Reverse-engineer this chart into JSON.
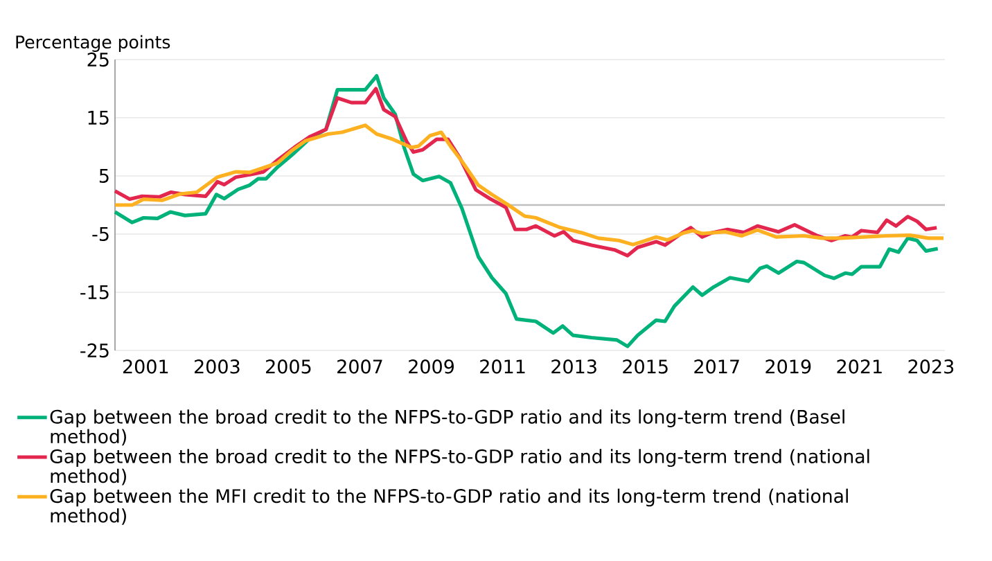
{
  "chart_data": {
    "type": "line",
    "ylabel": "Percentage points",
    "xlim": [
      2000.14,
      2023.39
    ],
    "xticks": [
      2001,
      2003,
      2005,
      2007,
      2009,
      2011,
      2013,
      2015,
      2017,
      2019,
      2021,
      2023
    ],
    "ylim": [
      -25,
      25
    ],
    "yticks": [
      25,
      15,
      5,
      -5,
      -15,
      -25
    ],
    "grid": "y",
    "legend": "bottom",
    "marker": "none",
    "line_style": "solid",
    "ref_lines": [
      {
        "axis": "y",
        "value": 0,
        "label": null,
        "color": "#bfbfbf"
      }
    ],
    "series": [
      {
        "name": "Gap between the broad credit to the NFPS-to-GDP ratio and its long-term trend (Basel method)",
        "color": "#00b17a",
        "x": [
          2000.14,
          2000.62,
          2000.94,
          2001.33,
          2001.69,
          2002.1,
          2002.68,
          2002.98,
          2003.2,
          2003.59,
          2003.91,
          2004.15,
          2004.37,
          2004.69,
          2005.08,
          2005.59,
          2006.05,
          2006.37,
          2007.15,
          2007.47,
          2007.67,
          2007.99,
          2008.25,
          2008.5,
          2008.76,
          2009.22,
          2009.54,
          2009.86,
          2010.32,
          2010.7,
          2011.09,
          2011.39,
          2011.93,
          2012.42,
          2012.68,
          2012.97,
          2013.49,
          2014.2,
          2014.5,
          2014.78,
          2015.3,
          2015.55,
          2015.81,
          2016.33,
          2016.59,
          2016.91,
          2017.37,
          2017.88,
          2018.21,
          2018.4,
          2018.73,
          2019.24,
          2019.44,
          2020.02,
          2020.28,
          2020.6,
          2020.79,
          2021.05,
          2021.57,
          2021.83,
          2022.09,
          2022.35,
          2022.61,
          2022.86,
          2023.19
        ],
        "values": [
          -1.2,
          -3.0,
          -2.2,
          -2.3,
          -1.2,
          -1.8,
          -1.5,
          1.8,
          1.1,
          2.7,
          3.4,
          4.5,
          4.5,
          6.5,
          8.5,
          11.4,
          13.0,
          19.8,
          19.8,
          22.2,
          18.4,
          15.6,
          9.7,
          5.3,
          4.2,
          4.9,
          3.8,
          -0.6,
          -8.9,
          -12.5,
          -15.2,
          -19.6,
          -20.0,
          -22.0,
          -20.8,
          -22.4,
          -22.8,
          -23.2,
          -24.3,
          -22.4,
          -19.8,
          -20.0,
          -17.4,
          -14.1,
          -15.5,
          -14.1,
          -12.5,
          -13.1,
          -10.9,
          -10.5,
          -11.7,
          -9.7,
          -9.9,
          -12.1,
          -12.6,
          -11.7,
          -11.9,
          -10.6,
          -10.6,
          -7.6,
          -8.1,
          -5.7,
          -6.1,
          -7.9,
          -7.5
        ]
      },
      {
        "name": "Gap between the broad credit to the NFPS-to-GDP ratio and its long-term trend (national method)",
        "color": "#e2264d",
        "x": [
          2000.14,
          2000.55,
          2000.88,
          2001.39,
          2001.71,
          2002.1,
          2002.68,
          2003.01,
          2003.2,
          2003.53,
          2003.91,
          2004.3,
          2004.69,
          2005.21,
          2005.59,
          2006.05,
          2006.37,
          2006.76,
          2007.15,
          2007.45,
          2007.67,
          2007.99,
          2008.31,
          2008.5,
          2008.76,
          2009.15,
          2009.47,
          2009.8,
          2010.25,
          2010.64,
          2011.09,
          2011.35,
          2011.67,
          2011.93,
          2012.45,
          2012.71,
          2012.97,
          2013.49,
          2014.13,
          2014.5,
          2014.78,
          2015.3,
          2015.55,
          2016.07,
          2016.27,
          2016.59,
          2016.85,
          2017.3,
          2017.76,
          2018.14,
          2018.73,
          2019.18,
          2019.82,
          2020.21,
          2020.6,
          2020.79,
          2021.05,
          2021.5,
          2021.76,
          2022.02,
          2022.35,
          2022.61,
          2022.86,
          2023.16
        ],
        "values": [
          2.4,
          1.0,
          1.5,
          1.4,
          2.2,
          1.8,
          1.5,
          4.0,
          3.5,
          4.8,
          5.2,
          5.7,
          7.7,
          10.1,
          11.7,
          13.0,
          18.4,
          17.6,
          17.6,
          20.0,
          16.4,
          15.2,
          10.9,
          9.1,
          9.5,
          11.3,
          11.3,
          8.1,
          2.6,
          1.1,
          -0.4,
          -4.2,
          -4.2,
          -3.6,
          -5.3,
          -4.6,
          -6.1,
          -6.9,
          -7.7,
          -8.7,
          -7.3,
          -6.3,
          -6.9,
          -4.6,
          -3.9,
          -5.5,
          -4.8,
          -4.2,
          -4.7,
          -3.6,
          -4.6,
          -3.4,
          -5.3,
          -6.1,
          -5.3,
          -5.5,
          -4.4,
          -4.7,
          -2.6,
          -3.6,
          -2.0,
          -2.8,
          -4.2,
          -3.9
        ]
      },
      {
        "name": "Gap between the MFI credit to the NFPS-to-GDP ratio and its long-term trend (national method)",
        "color": "#fdb120",
        "x": [
          2000.14,
          2000.62,
          2000.94,
          2001.46,
          2001.97,
          2002.43,
          2003.01,
          2003.53,
          2003.91,
          2004.3,
          2004.69,
          2005.08,
          2005.47,
          2006.11,
          2006.5,
          2007.15,
          2007.47,
          2007.92,
          2008.44,
          2008.64,
          2008.96,
          2009.28,
          2009.54,
          2009.86,
          2010.32,
          2010.7,
          2011.16,
          2011.61,
          2011.93,
          2012.58,
          2013.23,
          2013.68,
          2014.26,
          2014.65,
          2014.91,
          2015.3,
          2015.62,
          2016.07,
          2016.33,
          2016.59,
          2017.24,
          2017.69,
          2018.14,
          2018.66,
          2019.44,
          2019.95,
          2020.47,
          2021.12,
          2021.76,
          2022.41,
          2022.93,
          2023.35
        ],
        "values": [
          0.0,
          0.0,
          1.0,
          0.8,
          1.9,
          2.2,
          4.8,
          5.7,
          5.6,
          6.4,
          7.2,
          9.3,
          11.0,
          12.2,
          12.5,
          13.7,
          12.2,
          11.3,
          9.9,
          10.1,
          11.9,
          12.5,
          10.1,
          7.5,
          3.4,
          1.8,
          0.0,
          -1.9,
          -2.2,
          -3.8,
          -4.8,
          -5.7,
          -6.1,
          -6.8,
          -6.3,
          -5.5,
          -6.0,
          -4.8,
          -4.4,
          -4.9,
          -4.6,
          -5.3,
          -4.3,
          -5.5,
          -5.3,
          -5.7,
          -5.7,
          -5.5,
          -5.3,
          -5.2,
          -5.7,
          -5.7
        ]
      }
    ]
  }
}
